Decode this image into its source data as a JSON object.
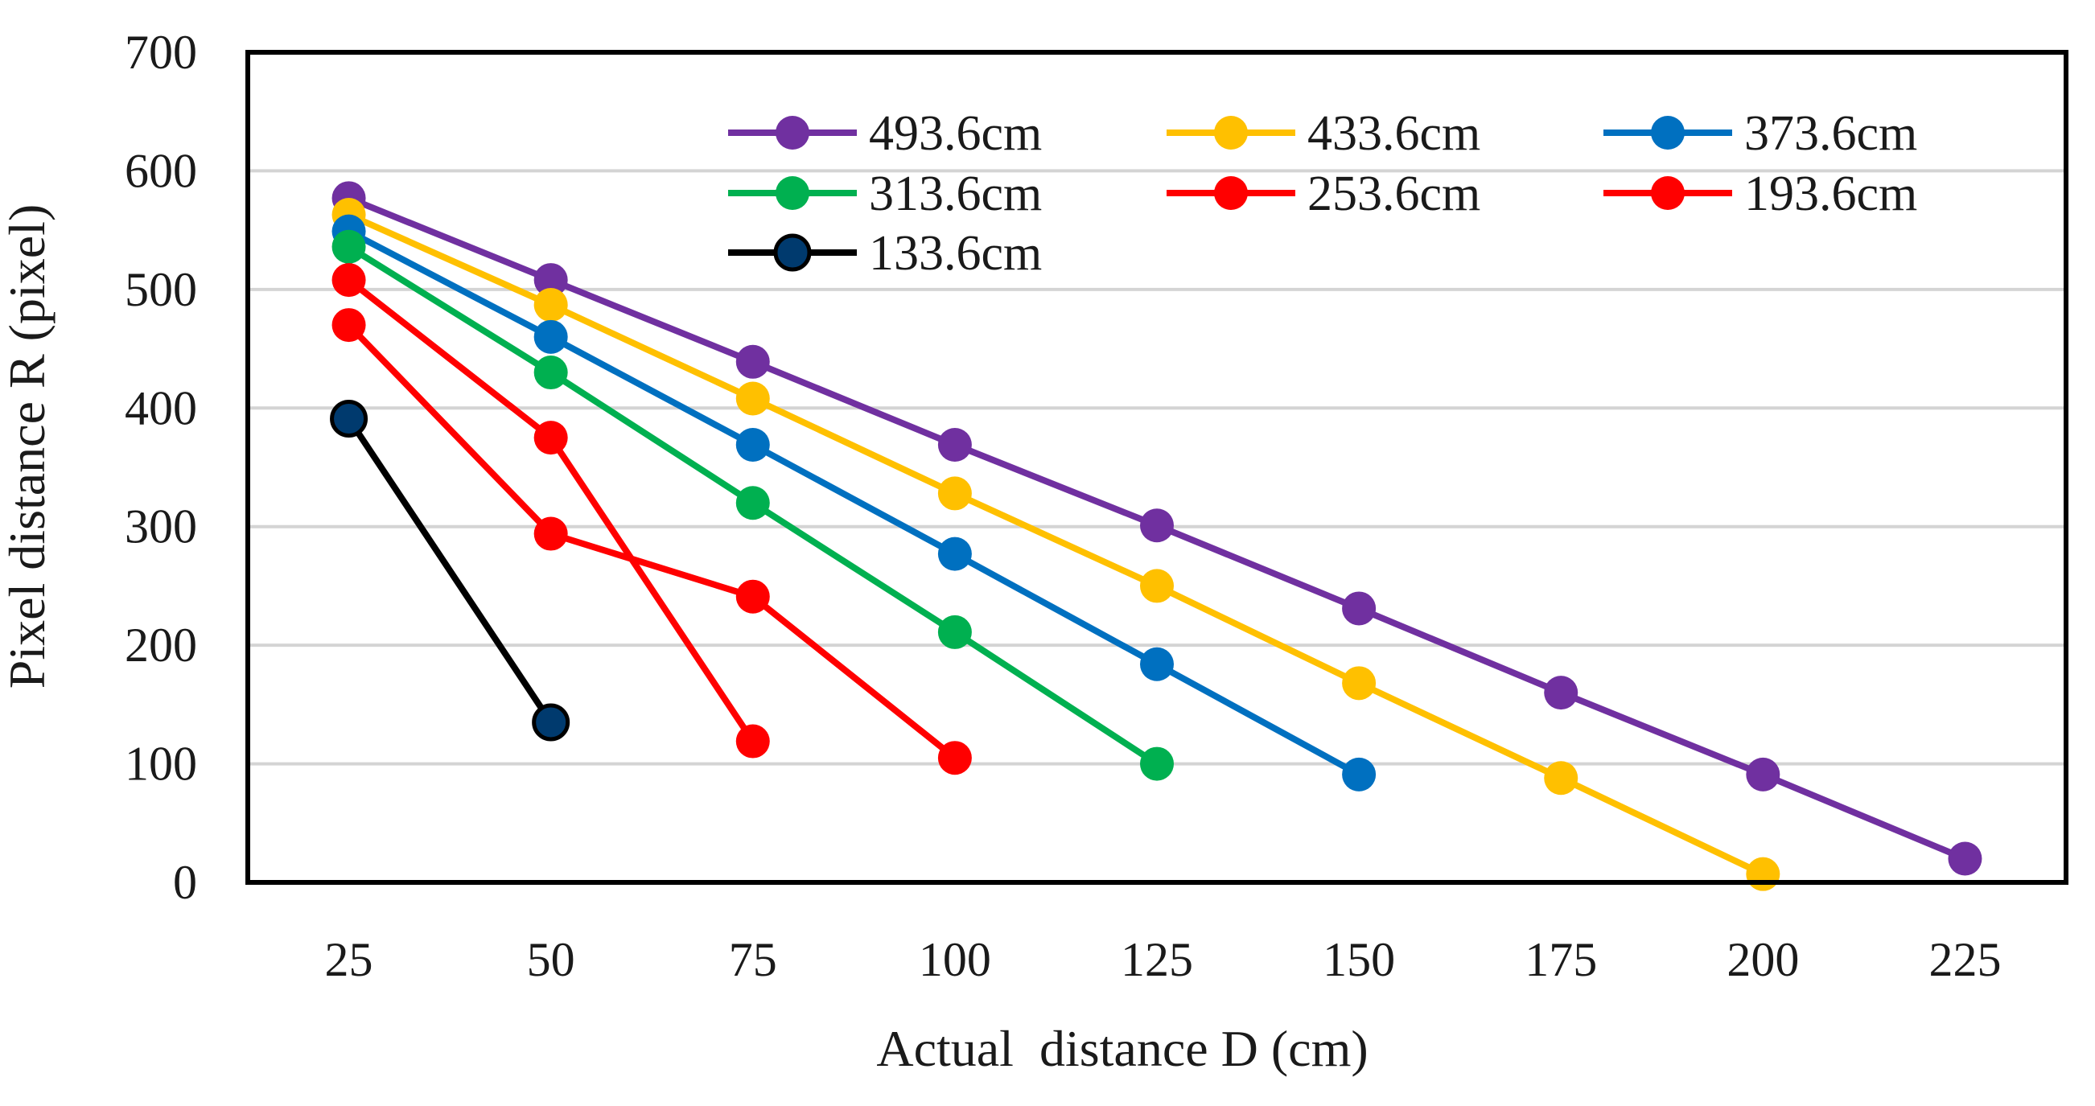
{
  "chart_data": {
    "type": "line",
    "title": "",
    "xlabel": "Actual  distance D (cm)",
    "ylabel": "Pixel distance R (pixel)",
    "x": [
      25,
      50,
      75,
      100,
      125,
      150,
      175,
      200,
      225
    ],
    "x_tick_labels": [
      "25",
      "50",
      "75",
      "100",
      "125",
      "150",
      "175",
      "200",
      "225"
    ],
    "ylim": [
      0,
      700
    ],
    "y_ticks": [
      0,
      100,
      200,
      300,
      400,
      500,
      600,
      700
    ],
    "y_tick_labels": [
      "0",
      "100",
      "200",
      "300",
      "400",
      "500",
      "600",
      "700"
    ],
    "grid": true,
    "legend_position": "top-right",
    "series": [
      {
        "name": "493.6cm",
        "color": "#7030A0",
        "x": [
          25,
          50,
          75,
          100,
          125,
          150,
          175,
          200,
          225
        ],
        "values": [
          577,
          508,
          439,
          369,
          301,
          231,
          160,
          91,
          20
        ]
      },
      {
        "name": "433.6cm",
        "color": "#FFC000",
        "x": [
          25,
          50,
          75,
          100,
          125,
          150,
          175,
          200
        ],
        "values": [
          563,
          487,
          408,
          328,
          250,
          168,
          88,
          7
        ]
      },
      {
        "name": "373.6cm",
        "color": "#0070C0",
        "x": [
          25,
          50,
          75,
          100,
          125,
          150
        ],
        "values": [
          549,
          460,
          369,
          277,
          184,
          91
        ]
      },
      {
        "name": "313.6cm",
        "color": "#00B050",
        "x": [
          25,
          50,
          75,
          100,
          125
        ],
        "values": [
          536,
          430,
          320,
          211,
          100
        ]
      },
      {
        "name": "253.6cm",
        "color": "#FF0000",
        "x": [
          25,
          50,
          75
        ],
        "values": [
          508,
          375,
          119
        ]
      },
      {
        "name": "193.6cm",
        "color": "#FF0000",
        "x": [
          25,
          50,
          75,
          100
        ],
        "values": [
          470,
          294,
          241,
          105
        ]
      },
      {
        "name": "133.6cm",
        "color": "#000000",
        "marker_color": "#003A6E",
        "x": [
          25,
          50
        ],
        "values": [
          391,
          135
        ]
      }
    ]
  }
}
